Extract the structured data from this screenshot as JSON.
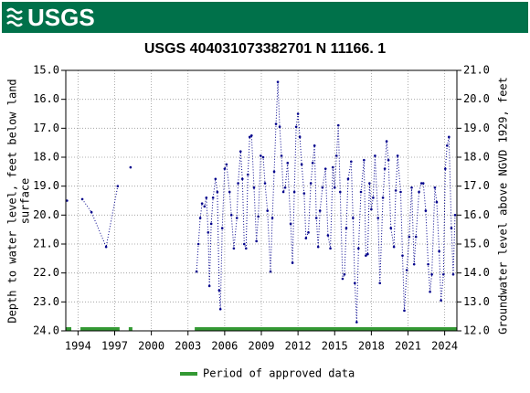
{
  "header": {
    "logo": "USGS"
  },
  "chart_data": {
    "type": "line",
    "title": "USGS 404031073382701 N 11166. 1",
    "ylabel": [
      "Depth to water level, feet below land",
      "surface"
    ],
    "y2label": "Groundwater level above NGVD 1929, feet",
    "xlim": [
      1993.0,
      2025.0
    ],
    "xticks": [
      1994,
      1997,
      2000,
      2003,
      2006,
      2009,
      2012,
      2015,
      2018,
      2021,
      2024
    ],
    "ylim": [
      24.0,
      15.0
    ],
    "yticks": [
      {
        "value": 15,
        "label": "15.0"
      },
      {
        "value": 16,
        "label": "16.0"
      },
      {
        "value": 17,
        "label": "17.0"
      },
      {
        "value": 18,
        "label": "18.0"
      },
      {
        "value": 19,
        "label": "19.0"
      },
      {
        "value": 20,
        "label": "20.0"
      },
      {
        "value": 21,
        "label": "21.0"
      },
      {
        "value": 22,
        "label": "22.0"
      },
      {
        "value": 23,
        "label": "23.0"
      },
      {
        "value": 24,
        "label": "24.0"
      }
    ],
    "y2lim": [
      12.0,
      21.0
    ],
    "y2ticks": [
      {
        "value": 21,
        "label": "21.0"
      },
      {
        "value": 20,
        "label": "20.0"
      },
      {
        "value": 19,
        "label": "19.0"
      },
      {
        "value": 18,
        "label": "18.0"
      },
      {
        "value": 17,
        "label": "17.0"
      },
      {
        "value": 16,
        "label": "16.0"
      },
      {
        "value": 15,
        "label": "15.0"
      },
      {
        "value": 14,
        "label": "14.0"
      },
      {
        "value": 13,
        "label": "13.0"
      },
      {
        "value": 12,
        "label": "12.0"
      }
    ],
    "grid": true,
    "series": [
      {
        "color": "#00008b",
        "x": [
          1993.1,
          null,
          1994.35,
          1995.1,
          1996.3,
          1997.25,
          null,
          1998.3,
          null,
          2003.7,
          2003.85,
          2004.0,
          2004.15,
          2004.35,
          2004.5,
          2004.65,
          2004.75,
          2004.9,
          2005.05,
          2005.25,
          2005.4,
          2005.55,
          2005.65,
          2005.8,
          2006.0,
          2006.15,
          2006.4,
          2006.55,
          2006.75,
          2007.0,
          2007.1,
          2007.3,
          2007.45,
          2007.6,
          2007.75,
          2007.9,
          2008.05,
          2008.2,
          2008.4,
          2008.6,
          2008.75,
          2008.95,
          2009.15,
          2009.3,
          2009.5,
          2009.75,
          2009.9,
          2010.05,
          2010.2,
          2010.35,
          2010.5,
          2010.65,
          2010.8,
          2010.95,
          2011.15,
          2011.4,
          2011.55,
          2011.7,
          2011.85,
          2012.0,
          2012.15,
          2012.3,
          2012.5,
          2012.65,
          2012.85,
          2013.05,
          2013.2,
          2013.35,
          2013.5,
          2013.65,
          2013.8,
          2014.0,
          2014.25,
          2014.45,
          2014.65,
          2014.85,
          2015.0,
          2015.15,
          2015.3,
          2015.45,
          2015.65,
          2015.8,
          2015.95,
          2016.1,
          2016.35,
          2016.5,
          2016.65,
          2016.8,
          2016.95,
          2017.15,
          2017.4,
          2017.55,
          2017.7,
          2017.85,
          2018.0,
          2018.15,
          2018.3,
          2018.55,
          2018.7,
          2018.95,
          2019.1,
          2019.25,
          2019.4,
          2019.6,
          2019.85,
          2020.0,
          2020.15,
          2020.4,
          2020.55,
          2020.7,
          2020.9,
          2021.1,
          2021.3,
          2021.5,
          2021.65,
          2021.9,
          2022.1,
          2022.25,
          2022.45,
          2022.65,
          2022.8,
          2022.95,
          2023.2,
          2023.35,
          2023.55,
          2023.7,
          2023.9,
          2024.05,
          2024.2,
          2024.35,
          2024.55,
          2024.7,
          2024.85
        ],
        "values": [
          19.5,
          null,
          19.45,
          19.9,
          21.1,
          19.0,
          null,
          18.35,
          null,
          21.95,
          21.0,
          20.1,
          19.6,
          19.7,
          19.4,
          20.6,
          22.45,
          20.3,
          19.4,
          18.75,
          19.2,
          22.6,
          23.25,
          20.45,
          18.4,
          18.25,
          19.2,
          20.0,
          21.15,
          20.1,
          18.9,
          17.8,
          18.75,
          21.0,
          21.15,
          18.6,
          17.3,
          17.25,
          19.05,
          20.9,
          20.05,
          17.95,
          18.0,
          18.9,
          19.85,
          21.95,
          20.1,
          18.5,
          16.85,
          15.4,
          16.95,
          17.95,
          19.2,
          19.05,
          18.2,
          20.3,
          21.65,
          19.2,
          16.95,
          16.5,
          17.3,
          18.25,
          19.25,
          20.8,
          20.6,
          18.9,
          18.2,
          17.6,
          20.1,
          21.1,
          19.85,
          19.05,
          18.4,
          20.7,
          21.15,
          18.35,
          19.05,
          17.95,
          16.9,
          19.2,
          22.2,
          22.05,
          20.45,
          18.75,
          18.15,
          20.1,
          22.35,
          23.7,
          21.15,
          19.2,
          18.1,
          21.4,
          21.35,
          18.9,
          19.8,
          19.4,
          17.95,
          20.1,
          22.35,
          19.4,
          18.4,
          17.45,
          18.1,
          20.45,
          21.1,
          19.15,
          17.95,
          19.2,
          21.4,
          23.3,
          21.9,
          20.75,
          19.05,
          21.7,
          20.75,
          19.2,
          18.9,
          18.9,
          19.85,
          21.7,
          22.65,
          22.05,
          19.05,
          19.55,
          21.25,
          22.95,
          22.05,
          18.4,
          17.6,
          17.3,
          20.45,
          22.05,
          20.0
        ]
      }
    ],
    "approved": {
      "name": "Period of approved data",
      "color": "#339933",
      "periods": [
        [
          1993.0,
          1993.45
        ],
        [
          1994.2,
          1997.4
        ],
        [
          1998.15,
          1998.45
        ],
        [
          2003.55,
          2025.0
        ]
      ]
    }
  }
}
